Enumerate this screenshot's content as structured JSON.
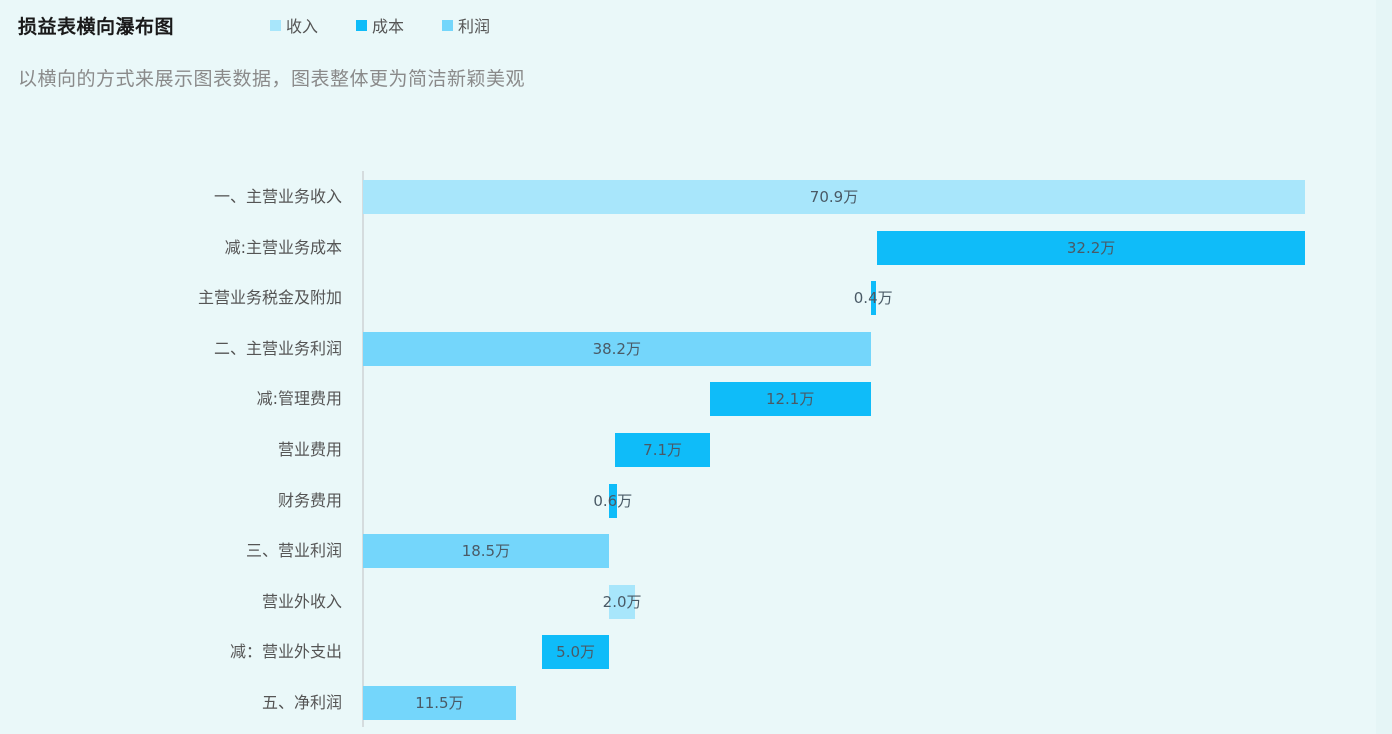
{
  "header": {
    "title": "损益表横向瀑布图",
    "subtitle": "以横向的方式来展示图表数据，图表整体更为简洁新颖美观"
  },
  "legend": [
    {
      "label": "收入",
      "color": "#a8e6fb"
    },
    {
      "label": "成本",
      "color": "#0fbcf9"
    },
    {
      "label": "利润",
      "color": "#74d6fb"
    }
  ],
  "chart_data": {
    "type": "bar",
    "orientation": "horizontal-waterfall",
    "title": "损益表横向瀑布图",
    "subtitle": "以横向的方式来展示图表数据，图表整体更为简洁新颖美观",
    "unit": "万",
    "legend_position": "top",
    "grid": false,
    "xlim": [
      0,
      70.9
    ],
    "categories": [
      "一、主营业务收入",
      "减:主营业务成本",
      "主营业务税金及附加",
      "二、主营业务利润",
      "减:管理费用",
      "营业费用",
      "财务费用",
      "三、营业利润",
      "营业外收入",
      "减：营业外支出",
      "五、净利润"
    ],
    "items": [
      {
        "category": "一、主营业务收入",
        "type": "收入",
        "start": 0,
        "end": 70.9,
        "value": 70.9,
        "label": "70.9万"
      },
      {
        "category": "减:主营业务成本",
        "type": "成本",
        "start": 38.7,
        "end": 70.9,
        "value": 32.2,
        "label": "32.2万"
      },
      {
        "category": "主营业务税金及附加",
        "type": "成本",
        "start": 38.2,
        "end": 38.6,
        "value": 0.4,
        "label": "0.4万"
      },
      {
        "category": "二、主营业务利润",
        "type": "利润",
        "start": 0,
        "end": 38.2,
        "value": 38.2,
        "label": "38.2万"
      },
      {
        "category": "减:管理费用",
        "type": "成本",
        "start": 26.1,
        "end": 38.2,
        "value": 12.1,
        "label": "12.1万"
      },
      {
        "category": "营业费用",
        "type": "成本",
        "start": 19.0,
        "end": 26.1,
        "value": 7.1,
        "label": "7.1万"
      },
      {
        "category": "财务费用",
        "type": "成本",
        "start": 18.5,
        "end": 19.1,
        "value": 0.6,
        "label": "0.6万"
      },
      {
        "category": "三、营业利润",
        "type": "利润",
        "start": 0,
        "end": 18.5,
        "value": 18.5,
        "label": "18.5万"
      },
      {
        "category": "营业外收入",
        "type": "收入",
        "start": 18.5,
        "end": 20.5,
        "value": 2.0,
        "label": "2.0万"
      },
      {
        "category": "减：营业外支出",
        "type": "成本",
        "start": 13.5,
        "end": 18.5,
        "value": 5.0,
        "label": "5.0万"
      },
      {
        "category": "五、净利润",
        "type": "利润",
        "start": 0,
        "end": 11.5,
        "value": 11.5,
        "label": "11.5万"
      }
    ],
    "series": [
      {
        "name": "收入",
        "values": [
          70.9,
          null,
          null,
          null,
          null,
          null,
          null,
          null,
          2.0,
          null,
          null
        ]
      },
      {
        "name": "成本",
        "values": [
          null,
          32.2,
          0.4,
          null,
          12.1,
          7.1,
          0.6,
          null,
          null,
          5.0,
          null
        ]
      },
      {
        "name": "利润",
        "values": [
          null,
          null,
          null,
          38.2,
          null,
          null,
          null,
          18.5,
          null,
          null,
          11.5
        ]
      }
    ]
  }
}
